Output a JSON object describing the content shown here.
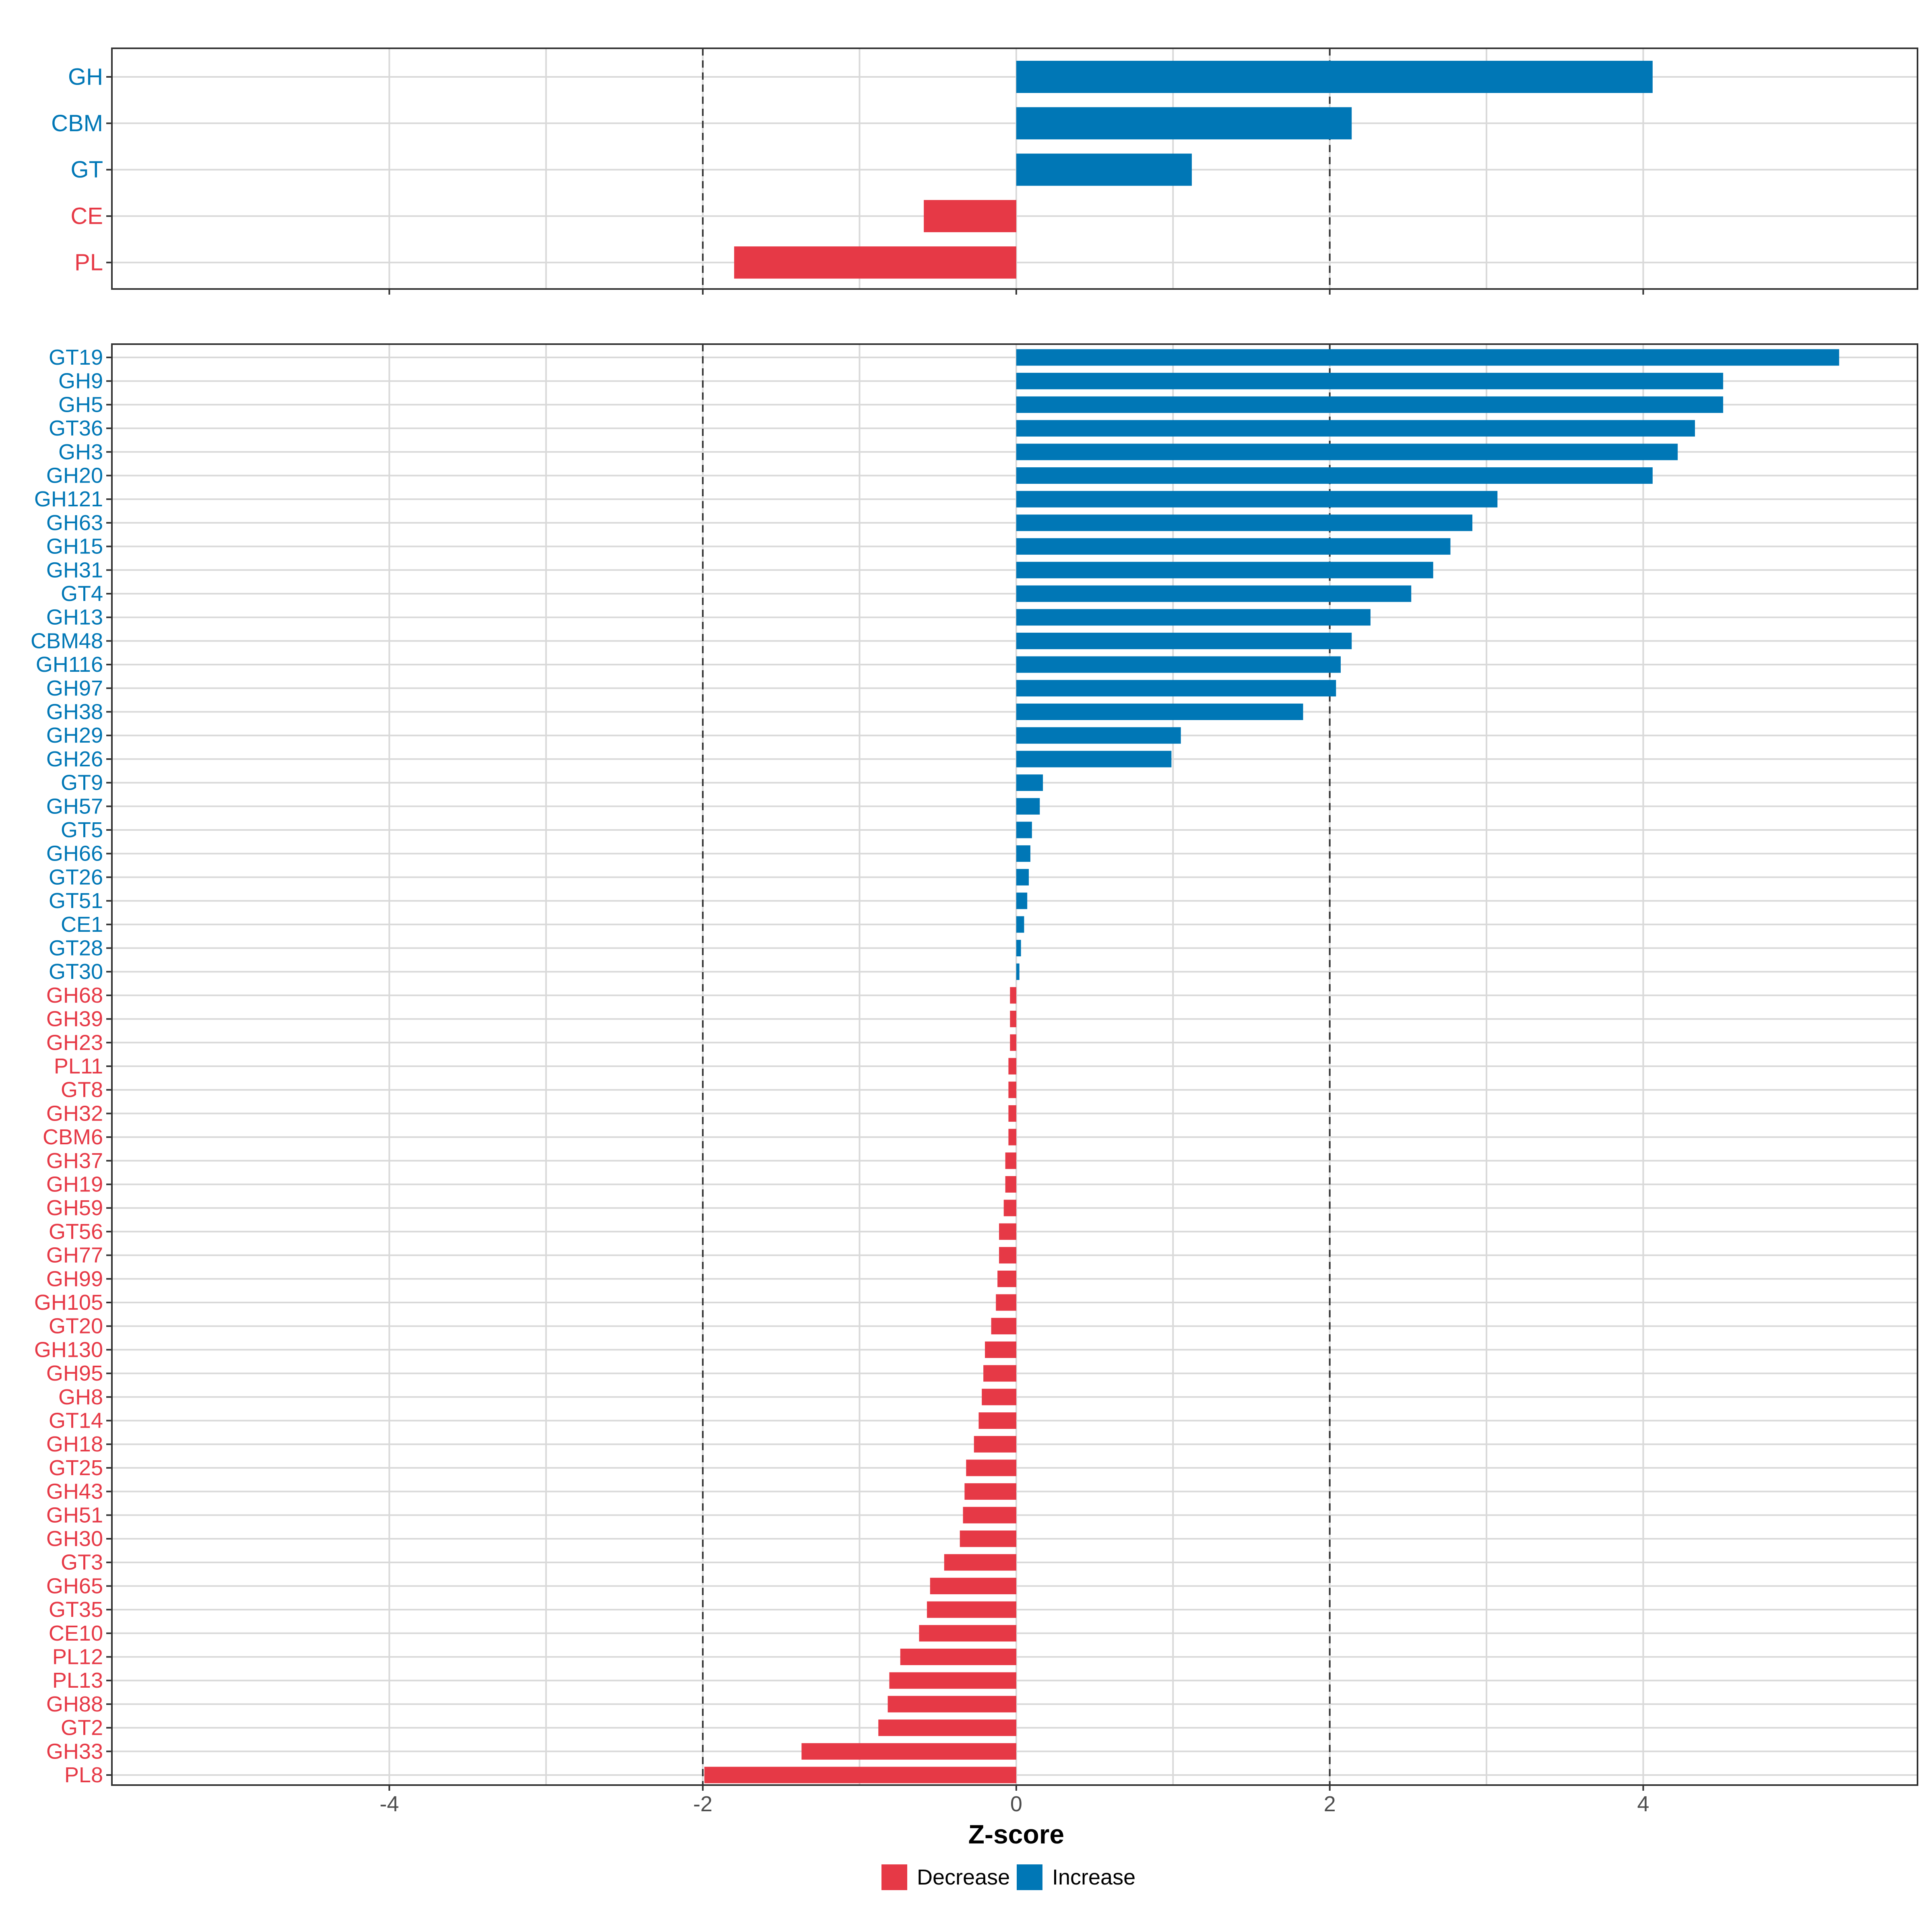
{
  "chart_data": [
    {
      "type": "bar",
      "orientation": "horizontal",
      "panel": "top",
      "categories": [
        "GH",
        "CBM",
        "GT",
        "CE",
        "PL"
      ],
      "values": [
        4.06,
        2.14,
        1.12,
        -0.59,
        -1.8
      ],
      "xlim": [
        -5.77,
        5.75
      ],
      "grid": true,
      "reference_lines": [
        -2,
        2
      ]
    },
    {
      "type": "bar",
      "orientation": "horizontal",
      "panel": "bottom",
      "categories": [
        "GT19",
        "GH9",
        "GH5",
        "GT36",
        "GH3",
        "GH20",
        "GH121",
        "GH63",
        "GH15",
        "GH31",
        "GT4",
        "GH13",
        "CBM48",
        "GH116",
        "GH97",
        "GH38",
        "GH29",
        "GH26",
        "GT9",
        "GH57",
        "GT5",
        "GH66",
        "GT26",
        "GT51",
        "CE1",
        "GT28",
        "GT30",
        "GH68",
        "GH39",
        "GH23",
        "PL11",
        "GT8",
        "GH32",
        "CBM6",
        "GH37",
        "GH19",
        "GH59",
        "GT56",
        "GH77",
        "GH99",
        "GH105",
        "GT20",
        "GH130",
        "GH95",
        "GH8",
        "GT14",
        "GH18",
        "GT25",
        "GH43",
        "GH51",
        "GH30",
        "GT3",
        "GH65",
        "GT35",
        "CE10",
        "PL12",
        "PL13",
        "GH88",
        "GT2",
        "GH33",
        "PL8"
      ],
      "values": [
        5.25,
        4.51,
        4.51,
        4.33,
        4.22,
        4.06,
        3.07,
        2.91,
        2.77,
        2.66,
        2.52,
        2.26,
        2.14,
        2.07,
        2.04,
        1.83,
        1.05,
        0.99,
        0.17,
        0.15,
        0.1,
        0.09,
        0.08,
        0.07,
        0.05,
        0.03,
        0.02,
        -0.04,
        -0.04,
        -0.04,
        -0.05,
        -0.05,
        -0.05,
        -0.05,
        -0.07,
        -0.07,
        -0.08,
        -0.11,
        -0.11,
        -0.12,
        -0.13,
        -0.16,
        -0.2,
        -0.21,
        -0.22,
        -0.24,
        -0.27,
        -0.32,
        -0.33,
        -0.34,
        -0.36,
        -0.46,
        -0.55,
        -0.57,
        -0.62,
        -0.74,
        -0.81,
        -0.82,
        -0.88,
        -1.37,
        -1.99
      ],
      "xlim": [
        -5.77,
        5.75
      ],
      "xticks": [
        -4,
        -2,
        0,
        2,
        4
      ],
      "xtick_labels": [
        "-4",
        "-2",
        "0",
        "2",
        "4"
      ],
      "xlabel": "Z-score",
      "grid": true,
      "reference_lines": [
        -2,
        2
      ]
    }
  ],
  "legend": {
    "position": "bottom",
    "items": [
      {
        "label": "Decrease",
        "color": "#E63946"
      },
      {
        "label": "Increase",
        "color": "#0077B6"
      }
    ]
  },
  "colors": {
    "increase": "#0077B6",
    "decrease": "#E63946",
    "grid": "#D9D9D9",
    "panel_border": "#333333",
    "reference_line": "#333333",
    "tick_text": "#4D4D4D"
  }
}
